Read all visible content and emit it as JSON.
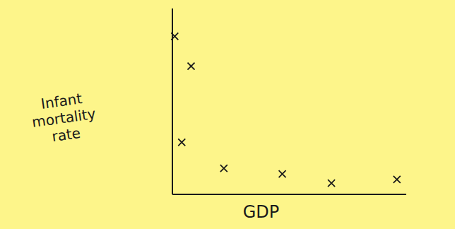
{
  "chart_data": {
    "type": "scatter",
    "x_label": "GDP",
    "y_label": "Infant mortality rate",
    "x": [
      1,
      8,
      4,
      22,
      47,
      68,
      96
    ],
    "values": [
      85,
      69,
      28,
      14,
      11,
      6,
      8
    ],
    "xlim": [
      0,
      100
    ],
    "ylim": [
      0,
      100
    ],
    "tick_labels": false,
    "grid": false,
    "marker": "x",
    "color": "#1a1a1a"
  }
}
